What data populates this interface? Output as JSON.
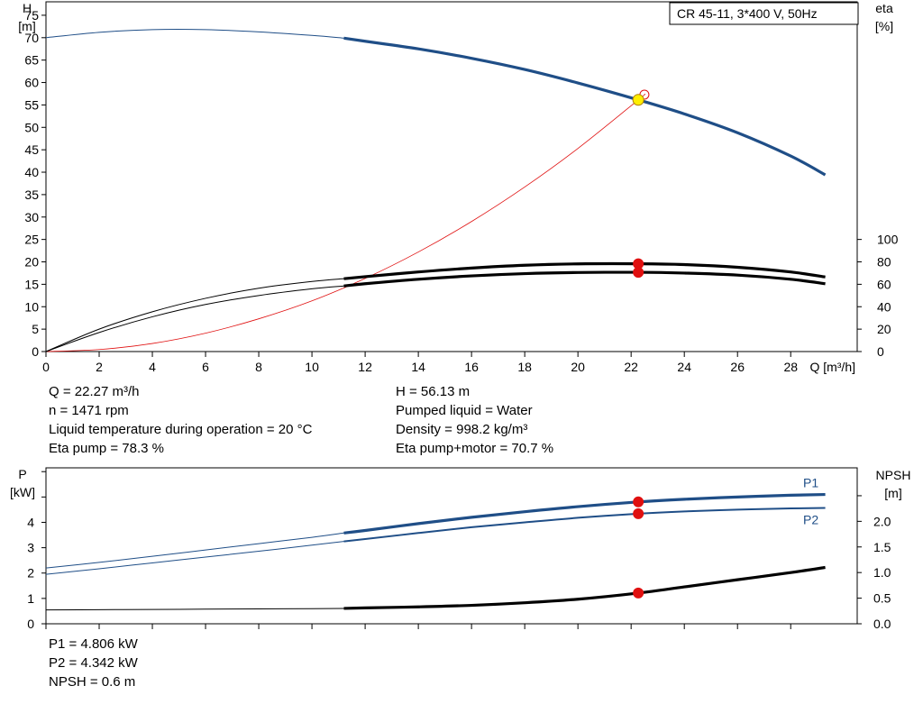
{
  "title_box": "CR 45-11, 3*400 V, 50Hz",
  "colors": {
    "blue": "#1f4e87",
    "red": "#e01010",
    "black": "#000000",
    "yellow": "#ffee00"
  },
  "chart_data": [
    {
      "type": "line",
      "y_axis": {
        "label": "H",
        "unit": "[m]",
        "range": [
          0,
          78
        ],
        "ticks": [
          0,
          5,
          10,
          15,
          20,
          25,
          30,
          35,
          40,
          45,
          50,
          55,
          60,
          65,
          70,
          75
        ]
      },
      "y2_axis": {
        "label": "eta",
        "unit": "[%]",
        "ticks": [
          0,
          20,
          40,
          60,
          80,
          100
        ],
        "ticks_position_in_H_units": "0-100% mapped to H 0-25"
      },
      "x_axis": {
        "label": "Q [m³/h]",
        "range": [
          0,
          30.5
        ],
        "ticks": [
          0,
          2,
          4,
          6,
          8,
          10,
          12,
          14,
          16,
          18,
          20,
          22,
          24,
          26,
          28
        ]
      },
      "grid": false,
      "operating_region_start_Q": 11.2,
      "series": [
        {
          "name": "H",
          "color": "blue",
          "x": [
            0,
            2,
            4,
            6,
            8,
            10,
            11.2,
            12,
            14,
            16,
            18,
            20,
            22.27,
            24,
            26,
            28,
            29.3
          ],
          "y": [
            70,
            71.2,
            71.8,
            71.8,
            71.3,
            70.5,
            69.9,
            69.2,
            67.5,
            65.4,
            62.9,
            59.9,
            56.13,
            53.0,
            48.8,
            43.6,
            39.4
          ]
        },
        {
          "name": "Eta pump",
          "color": "black",
          "x": [
            0,
            2,
            4,
            6,
            8,
            10,
            11.2,
            12,
            14,
            16,
            18,
            20,
            22.27,
            24,
            26,
            28,
            29.3
          ],
          "y": [
            0,
            20,
            35.5,
            47.5,
            56.5,
            62.5,
            65,
            66.8,
            71,
            74.5,
            77,
            78.2,
            78.3,
            77.6,
            75.2,
            71,
            66.5
          ]
        },
        {
          "name": "Eta pump+motor",
          "color": "black",
          "x": [
            0,
            2,
            4,
            6,
            8,
            10,
            11.2,
            12,
            14,
            16,
            18,
            20,
            22.27,
            24,
            26,
            28,
            29.3
          ],
          "y": [
            0,
            17,
            31,
            42,
            50,
            56,
            58.5,
            60.5,
            64.5,
            67.5,
            69.5,
            70.5,
            70.7,
            70,
            68.2,
            64.5,
            60.5
          ]
        },
        {
          "name": "System curve",
          "color": "red",
          "x": [
            0,
            2,
            4,
            6,
            8,
            10,
            12,
            14,
            16,
            18,
            20,
            22.27,
            22.5
          ],
          "y": [
            0,
            0.45,
            1.8,
            4.1,
            7.3,
            11.3,
            16.3,
            22.2,
            29.0,
            36.7,
            45.3,
            56.13,
            57.3
          ]
        }
      ],
      "operating_point": {
        "Q": 22.27,
        "H": 56.13,
        "eta_pump": 78.3,
        "eta_pump_motor": 70.7
      }
    },
    {
      "type": "line",
      "y_axis": {
        "label": "P",
        "unit": "[kW]",
        "range": [
          0,
          6.15
        ],
        "ticks": [
          0,
          1,
          2,
          3,
          4
        ]
      },
      "y2_axis": {
        "label": "NPSH",
        "unit": "[m]",
        "ticks": [
          "0.0",
          "0.5",
          "1.0",
          "1.5",
          "2.0",
          "2.5"
        ]
      },
      "x_axis": {
        "range": [
          0,
          30.5
        ]
      },
      "series": [
        {
          "name": "P1",
          "color": "blue",
          "x": [
            0,
            2,
            4,
            6,
            8,
            10,
            11.2,
            12,
            14,
            16,
            18,
            20,
            22.27,
            24,
            26,
            28,
            29.3
          ],
          "y": [
            2.2,
            2.42,
            2.66,
            2.91,
            3.16,
            3.41,
            3.58,
            3.68,
            3.95,
            4.2,
            4.42,
            4.62,
            4.806,
            4.91,
            5.0,
            5.07,
            5.1
          ]
        },
        {
          "name": "P2",
          "color": "blue",
          "x": [
            0,
            2,
            4,
            6,
            8,
            10,
            11.2,
            12,
            14,
            16,
            18,
            20,
            22.27,
            24,
            26,
            28,
            29.3
          ],
          "y": [
            1.95,
            2.17,
            2.4,
            2.63,
            2.86,
            3.1,
            3.25,
            3.34,
            3.58,
            3.81,
            4.0,
            4.18,
            4.342,
            4.43,
            4.5,
            4.55,
            4.57
          ]
        },
        {
          "name": "NPSH",
          "color": "black",
          "axis": "y2",
          "x": [
            0,
            2,
            4,
            6,
            8,
            10,
            11.2,
            12,
            14,
            16,
            18,
            20,
            22.27,
            24,
            26,
            28,
            29.3
          ],
          "y": [
            0.27,
            0.275,
            0.28,
            0.285,
            0.29,
            0.295,
            0.3,
            0.31,
            0.33,
            0.36,
            0.41,
            0.48,
            0.6,
            0.72,
            0.86,
            1.0,
            1.1
          ]
        }
      ],
      "operating_point": {
        "Q": 22.27,
        "P1": 4.806,
        "P2": 4.342,
        "NPSH": 0.6
      }
    }
  ],
  "info_top_left": [
    "Q = 22.27 m³/h",
    "n = 1471 rpm",
    "Liquid temperature during operation = 20 °C",
    "Eta pump = 78.3 %"
  ],
  "info_top_right": [
    "H = 56.13 m",
    "Pumped liquid = Water",
    "Density = 998.2 kg/m³",
    "Eta pump+motor = 70.7 %"
  ],
  "info_bottom": [
    "P1 = 4.806 kW",
    "P2 = 4.342 kW",
    "NPSH = 0.6 m"
  ]
}
